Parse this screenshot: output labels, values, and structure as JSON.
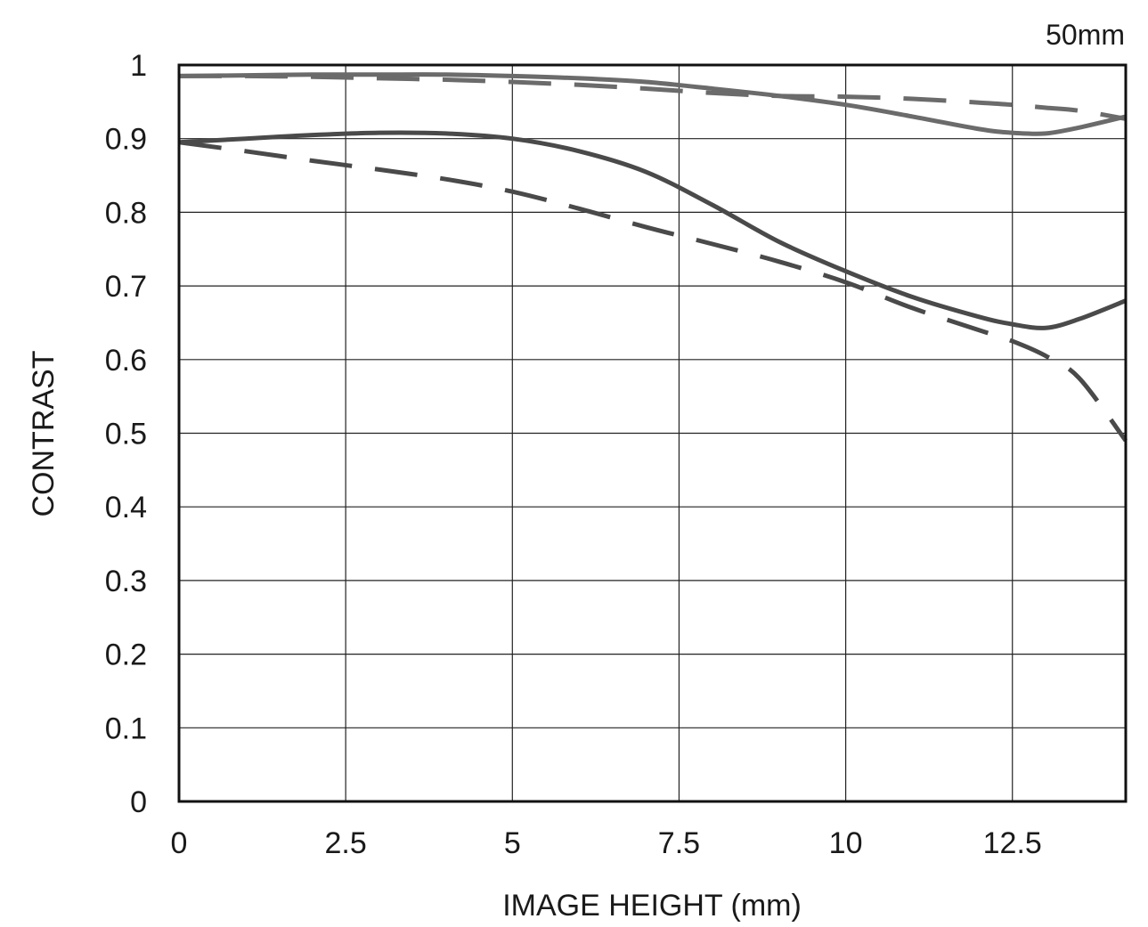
{
  "chart_data": {
    "type": "line",
    "annotation": "50mm",
    "xlabel": "IMAGE HEIGHT (mm)",
    "ylabel": "CONTRAST",
    "xlim": [
      0,
      14.2
    ],
    "ylim": [
      0,
      1
    ],
    "xticks": [
      0,
      2.5,
      5,
      7.5,
      10,
      12.5
    ],
    "xtick_labels": [
      "0",
      "2.5",
      "5",
      "7.5",
      "10",
      "12.5"
    ],
    "yticks": [
      0,
      0.1,
      0.2,
      0.3,
      0.4,
      0.5,
      0.6,
      0.7,
      0.8,
      0.9,
      1
    ],
    "ytick_labels": [
      "0",
      "0.1",
      "0.2",
      "0.3",
      "0.4",
      "0.5",
      "0.6",
      "0.7",
      "0.8",
      "0.9",
      "1"
    ],
    "grid": true,
    "series": [
      {
        "style": "solid",
        "color": "#6b6b6b",
        "x": [
          0,
          1,
          2,
          3,
          4,
          5,
          6,
          7,
          8,
          9,
          10,
          11,
          12,
          12.5,
          13,
          13.5,
          14.2
        ],
        "y": [
          0.985,
          0.986,
          0.987,
          0.987,
          0.987,
          0.985,
          0.982,
          0.977,
          0.968,
          0.958,
          0.946,
          0.93,
          0.913,
          0.908,
          0.907,
          0.915,
          0.93
        ]
      },
      {
        "style": "dashed",
        "color": "#6b6b6b",
        "x": [
          0,
          1,
          2,
          3,
          4,
          5,
          6,
          7,
          8,
          9,
          10,
          11,
          12,
          12.5,
          13,
          13.5,
          14.2
        ],
        "y": [
          0.985,
          0.985,
          0.984,
          0.982,
          0.98,
          0.977,
          0.973,
          0.968,
          0.962,
          0.958,
          0.957,
          0.954,
          0.949,
          0.946,
          0.942,
          0.938,
          0.927
        ]
      },
      {
        "style": "solid",
        "color": "#4a4a4a",
        "x": [
          0,
          1,
          2,
          3,
          4,
          5,
          6,
          7,
          8,
          9,
          10,
          11,
          12,
          12.5,
          13,
          13.5,
          14.2
        ],
        "y": [
          0.895,
          0.9,
          0.905,
          0.908,
          0.907,
          0.9,
          0.883,
          0.855,
          0.81,
          0.76,
          0.72,
          0.685,
          0.658,
          0.648,
          0.643,
          0.655,
          0.68
        ]
      },
      {
        "style": "dashed",
        "color": "#4a4a4a",
        "x": [
          0,
          1,
          2,
          3,
          4,
          5,
          6,
          7,
          8,
          9,
          10,
          11,
          12,
          12.5,
          13,
          13.5,
          14.2
        ],
        "y": [
          0.895,
          0.883,
          0.87,
          0.858,
          0.845,
          0.828,
          0.805,
          0.78,
          0.757,
          0.733,
          0.705,
          0.67,
          0.64,
          0.625,
          0.605,
          0.575,
          0.49
        ]
      }
    ]
  }
}
